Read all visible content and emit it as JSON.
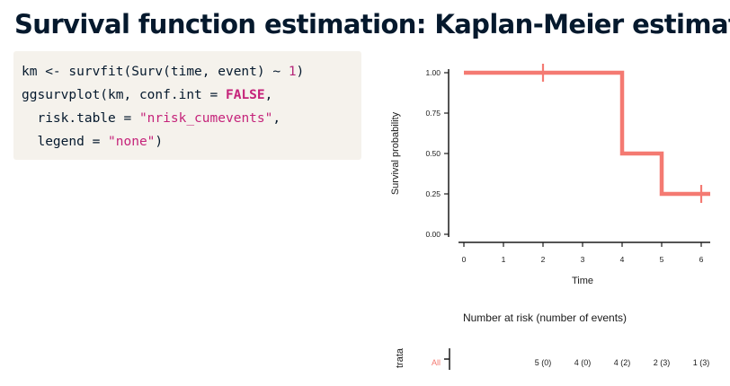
{
  "slide": {
    "title": "Survival function estimation: Kaplan-Meier estimate"
  },
  "code": {
    "line1_pre": "km <- survfit(Surv(time, event) ~ ",
    "line1_num": "1",
    "line1_post": ")",
    "line2_pre": "ggsurvplot(km, conf.int = ",
    "line2_kw": "FALSE",
    "line2_post": ",",
    "line3_pre": "  risk.table = ",
    "line3_str": "\"nrisk_cumevents\"",
    "line3_post": ",",
    "line4_pre": "  legend = ",
    "line4_str": "\"none\"",
    "line4_post": ")"
  },
  "colors": {
    "curve": "#f47a72",
    "code_bg": "#f5f2ec",
    "keyword": "#c5237a",
    "title": "#05192d"
  },
  "chart_data": {
    "type": "line",
    "step": true,
    "xlabel": "Time",
    "ylabel": "Survival probability",
    "xlim": [
      0,
      6
    ],
    "ylim": [
      0,
      1
    ],
    "x_ticks": [
      "0",
      "1",
      "2",
      "3",
      "4",
      "5",
      "6"
    ],
    "y_ticks": [
      "0.00",
      "0.25",
      "0.50",
      "0.75",
      "1.00"
    ],
    "grid": false,
    "legend": "none",
    "series": [
      {
        "x": [
          0,
          4,
          5,
          6
        ],
        "y": [
          1.0,
          0.5,
          0.25,
          0.25
        ]
      }
    ],
    "censor_marks": [
      {
        "x": 2,
        "y": 1.0
      },
      {
        "x": 6,
        "y": 0.25
      }
    ]
  },
  "risk_table": {
    "title": "Number at risk (number of events)",
    "ylabel": "trata",
    "strata_label": "All",
    "times": [
      2,
      3,
      4,
      5,
      6
    ],
    "values": [
      "5 (0)",
      "4 (0)",
      "4 (2)",
      "2 (3)",
      "1 (3)"
    ]
  }
}
